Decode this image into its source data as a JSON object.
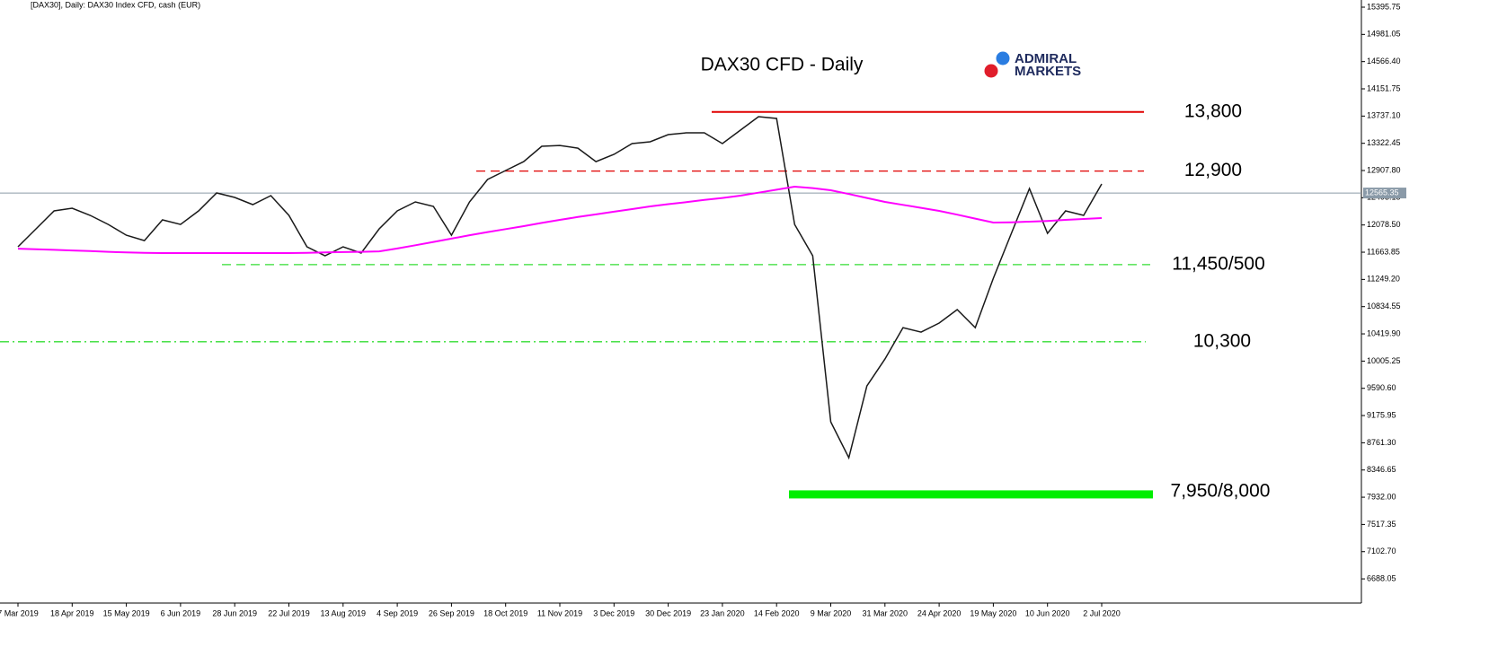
{
  "header": "[DAX30], Daily:  DAX30 Index CFD, cash (EUR)",
  "logo": [
    "ADMIRAL",
    "MARKETS"
  ],
  "chart_data": {
    "type": "line",
    "title": "DAX30 CFD - Daily",
    "categories": [
      "7 Mar 2019",
      null,
      null,
      "18 Apr 2019",
      null,
      null,
      "15 May 2019",
      null,
      null,
      "6 Jun 2019",
      null,
      null,
      "28 Jun 2019",
      null,
      null,
      "22 Jul 2019",
      null,
      null,
      "13 Aug 2019",
      null,
      null,
      "4 Sep 2019",
      null,
      null,
      "26 Sep 2019",
      null,
      null,
      "18 Oct 2019",
      null,
      null,
      "11 Nov 2019",
      null,
      null,
      "3 Dec 2019",
      null,
      null,
      "30 Dec 2019",
      null,
      null,
      "23 Jan 2020",
      null,
      null,
      "14 Feb 2020",
      null,
      null,
      "9 Mar 2020",
      null,
      null,
      "31 Mar 2020",
      null,
      null,
      "24 Apr 2020",
      null,
      null,
      "19 May 2020",
      null,
      null,
      "10 Jun 2020",
      null,
      null,
      "2 Jul 2020"
    ],
    "series": [
      {
        "color": "#1a1a1a",
        "values": [
          11746,
          12019,
          12293,
          12334,
          12224,
          12087,
          11923,
          11841,
          12156,
          12087,
          12293,
          12566,
          12498,
          12388,
          12525,
          12224,
          11746,
          11609,
          11746,
          11650,
          12019,
          12293,
          12429,
          12361,
          11923,
          12429,
          12771,
          12908,
          13044,
          13277,
          13290,
          13249,
          13044,
          13154,
          13318,
          13345,
          13455,
          13482,
          13482,
          13318,
          13523,
          13728,
          13701,
          12087,
          11609,
          9080,
          8533,
          9627,
          10037,
          10515,
          10447,
          10584,
          10789,
          10515,
          11267,
          11951,
          12634,
          11951,
          12293,
          12224,
          12703
        ]
      },
      {
        "color": "#ff00ff",
        "values": [
          11718,
          11710,
          11700,
          11690,
          11680,
          11670,
          11660,
          11655,
          11650,
          11650,
          11650,
          11650,
          11650,
          11650,
          11650,
          11650,
          11655,
          11660,
          11665,
          11670,
          11677,
          11720,
          11770,
          11820,
          11870,
          11923,
          11970,
          12015,
          12060,
          12110,
          12156,
          12200,
          12240,
          12280,
          12320,
          12361,
          12395,
          12425,
          12460,
          12490,
          12525,
          12570,
          12615,
          12662,
          12640,
          12607,
          12550,
          12490,
          12429,
          12385,
          12340,
          12293,
          12235,
          12175,
          12115,
          12120,
          12129,
          12140,
          12156,
          12170,
          12183
        ]
      }
    ],
    "levels": [
      {
        "value": 13800,
        "label": "13,800",
        "color": "#e00000",
        "style": "solid"
      },
      {
        "value": 12900,
        "label": "12,900",
        "color": "#e00000",
        "style": "dash"
      },
      {
        "values": [
          11450,
          11500
        ],
        "label": "11,450/500",
        "color": "#33dd33",
        "style": "dash"
      },
      {
        "value": 10300,
        "label": "10,300",
        "color": "#33dd33",
        "style": "dashdot"
      },
      {
        "values": [
          7950,
          8000
        ],
        "label": "7,950/8,000",
        "color": "#00ee00",
        "style": "band"
      }
    ],
    "last_price": {
      "value": 12565.35,
      "label": "12565.35"
    },
    "ylim": [
      6320,
      15505
    ],
    "yticks": [
      15395.75,
      14981.05,
      {
        "value": 14566.4,
        "label": "14566.40"
      },
      14151.75,
      {
        "value": 13737.1,
        "label": "13737.10"
      },
      13322.45,
      {
        "value": 12907.8,
        "label": "12907.80"
      },
      12493.15,
      {
        "value": 12078.5,
        "label": "12078.50"
      },
      11663.85,
      {
        "value": 11249.2,
        "label": "11249.20"
      },
      10834.55,
      {
        "value": 10419.9,
        "label": "10419.90"
      },
      10005.25,
      {
        "value": 9590.6,
        "label": "9590.60"
      },
      9175.95,
      {
        "value": 8761.3,
        "label": "8761.30"
      },
      8346.65,
      {
        "value": 7932,
        "label": "7932.00"
      },
      7517.35,
      {
        "value": 7102.7,
        "label": "7102.70"
      },
      6688.05
    ]
  }
}
